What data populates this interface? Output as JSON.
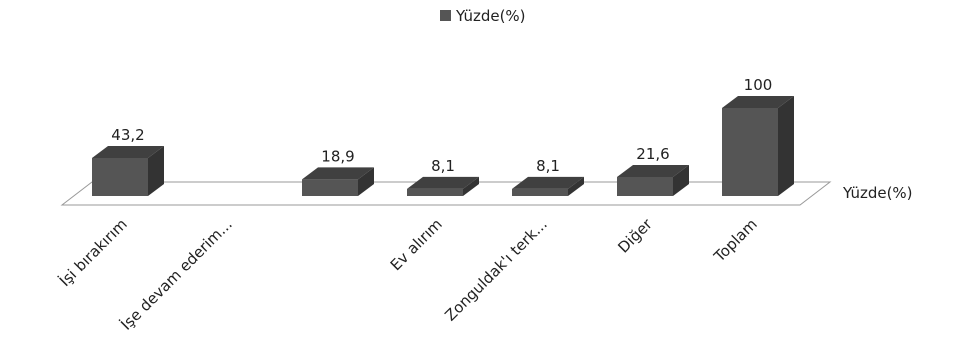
{
  "chart_data": {
    "type": "bar3d",
    "categories": [
      "İşi bırakırım",
      "İşe devam ederim...",
      null,
      "Ev alırım",
      "Zonguldak'ı terk...",
      "Diğer",
      "Toplam"
    ],
    "series": [
      {
        "name": "Yüzde(%)",
        "color": "#555555",
        "values": [
          43.2,
          null,
          18.9,
          8.1,
          8.1,
          21.6,
          100
        ],
        "value_labels": [
          "43,2",
          null,
          "18,9",
          "8,1",
          "8,1",
          "21,6",
          "100"
        ]
      }
    ],
    "legend": "top"
  }
}
